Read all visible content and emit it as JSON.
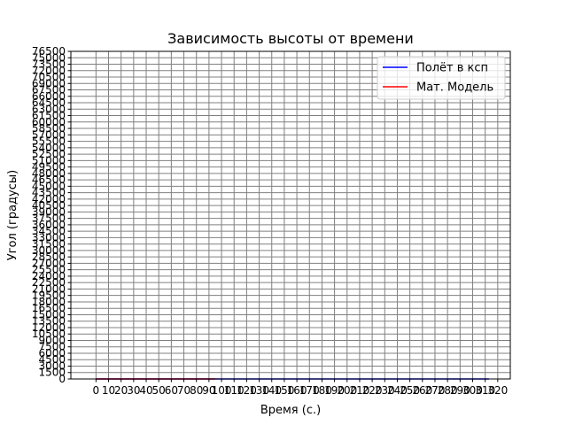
{
  "chart_data": {
    "type": "line",
    "title": "Зависимость высоты от времени",
    "xlabel": "Время (с.)",
    "ylabel": "Угол (градусы)",
    "xlim": [
      -20,
      330
    ],
    "ylim": [
      0,
      76500
    ],
    "x_ticks": [
      0,
      10,
      20,
      30,
      40,
      50,
      60,
      70,
      80,
      90,
      100,
      110,
      120,
      130,
      140,
      150,
      160,
      170,
      180,
      190,
      200,
      210,
      220,
      230,
      240,
      250,
      260,
      270,
      280,
      290,
      300,
      310,
      320
    ],
    "y_ticks": [
      0,
      1500,
      3000,
      4500,
      6000,
      7500,
      9000,
      10500,
      12000,
      13500,
      15000,
      16500,
      18000,
      19500,
      21000,
      22500,
      24000,
      25500,
      27000,
      28500,
      30000,
      31500,
      33000,
      34500,
      36000,
      37500,
      39000,
      40500,
      42000,
      43500,
      45000,
      46500,
      48000,
      49500,
      51000,
      52500,
      54000,
      55500,
      57000,
      58500,
      60000,
      61500,
      63000,
      64500,
      66000,
      67500,
      69000,
      70500,
      72000,
      73500,
      75000,
      76500
    ],
    "grid": true,
    "legend_position": "top-right",
    "series": [
      {
        "name": "Полёт в ксп",
        "color": "#0000ff",
        "x": [
          0,
          313
        ],
        "y": [
          0,
          0
        ]
      },
      {
        "name": "Мат. Модель",
        "color": "#ff0000",
        "x": [
          0,
          95
        ],
        "y": [
          0,
          0
        ]
      }
    ]
  }
}
